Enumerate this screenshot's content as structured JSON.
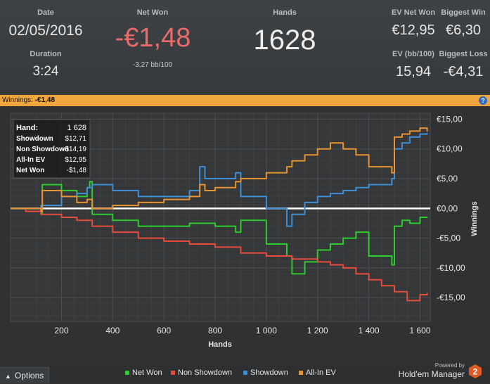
{
  "stats": {
    "date_label": "Date",
    "date": "02/05/2016",
    "duration_label": "Duration",
    "duration": "3:24",
    "netwon_label": "Net Won",
    "netwon": "-€1,48",
    "netwon_bb": "-3,27 bb/100",
    "hands_label": "Hands",
    "hands": "1628",
    "evnet_label": "EV Net Won",
    "evnet": "€12,95",
    "bigwin_label": "Biggest Win",
    "bigwin": "€6,30",
    "evbb_label": "EV (bb/100)",
    "evbb": "15,94",
    "bigloss_label": "Biggest Loss",
    "bigloss": "-€4,31"
  },
  "winbar": {
    "label": "Winnings:",
    "value": "-€1,48",
    "help": "?"
  },
  "tooltip": {
    "rows": [
      {
        "k": "Hand:",
        "v": "1 628"
      },
      {
        "k": "Showdown",
        "v": "$12,71"
      },
      {
        "k": "Non Showdown",
        "v": "-$14,19"
      },
      {
        "k": "All-In EV",
        "v": "$12,95"
      },
      {
        "k": "Net Won",
        "v": "-$1,48"
      }
    ]
  },
  "chart_data": {
    "type": "line",
    "xlabel": "Hands",
    "ylabel": "Winnings",
    "xlim": [
      1,
      1640
    ],
    "ylim": [
      -19,
      16
    ],
    "xticks": [
      200,
      400,
      600,
      800,
      1000,
      1200,
      1400,
      1600
    ],
    "xtick_labels": [
      "200",
      "400",
      "600",
      "800",
      "1 000",
      "1 200",
      "1 400",
      "1 600"
    ],
    "yticks": [
      15,
      10,
      5,
      0,
      -5,
      -10,
      -15
    ],
    "ytick_labels": [
      "€15,00",
      "€10,00",
      "€5,00",
      "€0,00",
      "-€5,00",
      "-€10,00",
      "-€15,00"
    ],
    "grid": true,
    "legend_position": "bottom",
    "series": [
      {
        "name": "Net Won",
        "color": "#2ecc2e",
        "x": [
          1,
          60,
          120,
          125,
          200,
          260,
          300,
          310,
          320,
          400,
          500,
          600,
          700,
          800,
          880,
          900,
          1000,
          1080,
          1100,
          1150,
          1200,
          1250,
          1300,
          1350,
          1400,
          1490,
          1500,
          1530,
          1560,
          1600,
          1628
        ],
        "y": [
          0,
          0,
          -1,
          4,
          3,
          2,
          3.5,
          4.5,
          -1,
          -2,
          -3,
          -3,
          -2.5,
          -3,
          -4,
          -2,
          -6,
          -8,
          -11,
          -9,
          -7,
          -6,
          -5,
          -4,
          -8,
          -9.5,
          -3,
          -2,
          -2.5,
          -1.5,
          -1.48
        ]
      },
      {
        "name": "Non Showdown",
        "color": "#e74c3c",
        "x": [
          1,
          60,
          120,
          200,
          260,
          320,
          400,
          500,
          600,
          700,
          800,
          900,
          1000,
          1100,
          1200,
          1250,
          1300,
          1350,
          1400,
          1450,
          1500,
          1550,
          1600,
          1628
        ],
        "y": [
          0,
          -0.5,
          -1,
          -1.5,
          -2,
          -3,
          -4,
          -5,
          -5.5,
          -6,
          -6.5,
          -7.5,
          -8,
          -8.5,
          -9,
          -9.5,
          -10,
          -11,
          -12,
          -13,
          -14,
          -15.5,
          -14.5,
          -14.19
        ]
      },
      {
        "name": "Showdown",
        "color": "#3f8fd8",
        "x": [
          1,
          60,
          120,
          200,
          260,
          300,
          320,
          400,
          500,
          600,
          700,
          740,
          760,
          800,
          880,
          900,
          1000,
          1080,
          1100,
          1150,
          1200,
          1250,
          1300,
          1350,
          1400,
          1490,
          1500,
          1530,
          1560,
          1600,
          1628
        ],
        "y": [
          0,
          0,
          0.5,
          2,
          2.5,
          3.5,
          4,
          3,
          2,
          2,
          3,
          7,
          5,
          5,
          6,
          2,
          0,
          -3,
          -1,
          1,
          2,
          2.5,
          3,
          3.5,
          4,
          5,
          10,
          11,
          12,
          12.5,
          12.71
        ]
      },
      {
        "name": "All-In EV",
        "color": "#e89332",
        "x": [
          1,
          60,
          120,
          125,
          200,
          260,
          300,
          320,
          400,
          500,
          600,
          700,
          740,
          760,
          800,
          880,
          900,
          1000,
          1080,
          1100,
          1150,
          1200,
          1250,
          1300,
          1350,
          1400,
          1490,
          1500,
          1530,
          1560,
          1600,
          1628
        ],
        "y": [
          0,
          0,
          -0.5,
          3,
          2,
          1,
          1.5,
          0,
          0.5,
          1,
          1.5,
          2,
          4,
          3,
          3.5,
          4.5,
          5,
          6,
          7,
          8,
          9,
          10,
          11,
          10,
          9,
          7,
          6,
          12,
          12.5,
          13,
          13.5,
          12.95
        ]
      }
    ]
  },
  "footer": {
    "options": "Options",
    "legend": [
      "Net Won",
      "Non Showdown",
      "Showdown",
      "All-In EV"
    ],
    "legend_colors": [
      "#2ecc2e",
      "#e74c3c",
      "#3f8fd8",
      "#e89332"
    ],
    "powered_by": "Powered by",
    "brand": "Hold'em Manager",
    "logo_number": "2"
  }
}
